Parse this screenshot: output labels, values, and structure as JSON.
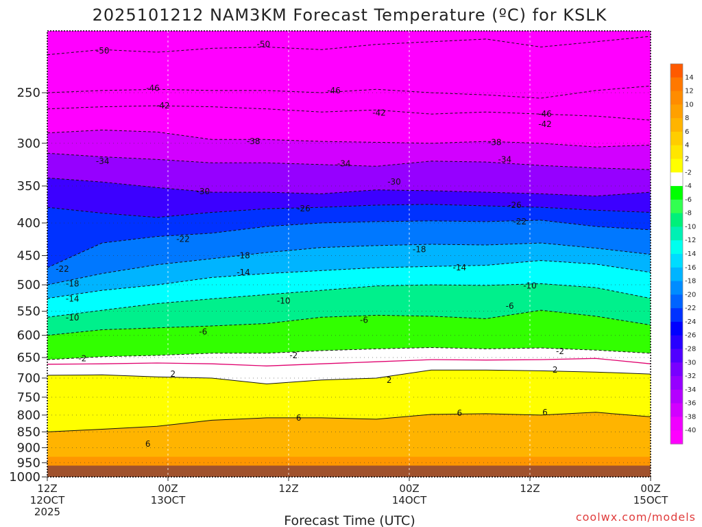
{
  "chart_data": {
    "type": "heatmap",
    "title": "2025101212 NAM3KM Forecast Temperature (ºC) for KSLK",
    "xlabel": "Forecast Time (UTC)",
    "credit": "coolwx.com/models",
    "y_axis": {
      "unit": "hPa",
      "ticks": [
        250,
        300,
        350,
        400,
        450,
        500,
        550,
        600,
        650,
        700,
        750,
        800,
        850,
        900,
        950,
        1000
      ],
      "top_pressure": 200,
      "bottom_pressure": 1000,
      "ground_level_hPa": 960
    },
    "x_axis": {
      "range_hours": [
        0,
        60
      ],
      "ticks": [
        {
          "hour": 0,
          "line1": "12Z",
          "line2": "12OCT",
          "line3": "2025"
        },
        {
          "hour": 12,
          "line1": "00Z",
          "line2": "13OCT",
          "line3": ""
        },
        {
          "hour": 24,
          "line1": "12Z",
          "line2": "",
          "line3": ""
        },
        {
          "hour": 36,
          "line1": "00Z",
          "line2": "14OCT",
          "line3": ""
        },
        {
          "hour": 48,
          "line1": "12Z",
          "line2": "",
          "line3": ""
        },
        {
          "hour": 60,
          "line1": "00Z",
          "line2": "15OCT",
          "line3": ""
        }
      ]
    },
    "colorbar": {
      "labels": [
        "14",
        "12",
        "10",
        "8",
        "6",
        "4",
        "2",
        "-2",
        "-4",
        "-6",
        "-8",
        "-10",
        "-12",
        "-14",
        "-16",
        "-18",
        "-20",
        "-22",
        "-24",
        "-26",
        "-28",
        "-30",
        "-32",
        "-34",
        "-36",
        "-38",
        "-40"
      ],
      "colors": [
        "#ff5a00",
        "#ff7800",
        "#ff8c00",
        "#ffa000",
        "#ffb400",
        "#ffcd00",
        "#ffe600",
        "#ffff00",
        "#ffffff",
        "#00ff00",
        "#32ff50",
        "#00f07a",
        "#00f0b4",
        "#00ffee",
        "#00dcff",
        "#00b4ff",
        "#008cff",
        "#0064ff",
        "#0032ff",
        "#0000ff",
        "#2800ff",
        "#5000ff",
        "#7800ff",
        "#9600ff",
        "#b400ff",
        "#d200ff",
        "#f000ff",
        "#ff00ff"
      ]
    },
    "contours": [
      {
        "value": -50,
        "pressure": [
          218,
          214,
          216,
          213,
          212,
          214,
          210,
          208,
          206,
          212,
          208,
          204
        ]
      },
      {
        "value": -46,
        "pressure": [
          250,
          248,
          247,
          248,
          248,
          250,
          247,
          250,
          252,
          255,
          248,
          244
        ]
      },
      {
        "value": -42,
        "pressure": [
          265,
          263,
          262,
          263,
          265,
          268,
          266,
          270,
          268,
          270,
          272,
          276
        ]
      },
      {
        "value": -38,
        "pressure": [
          289,
          286,
          288,
          296,
          296,
          298,
          299,
          300,
          298,
          300,
          304,
          302
        ]
      },
      {
        "value": -34,
        "pressure": [
          311,
          315,
          318,
          322,
          322,
          324,
          326,
          320,
          321,
          325,
          328,
          330
        ]
      },
      {
        "value": -30,
        "pressure": [
          340,
          345,
          352,
          358,
          358,
          360,
          355,
          356,
          358,
          360,
          363,
          358
        ]
      },
      {
        "value": -26,
        "pressure": [
          378,
          386,
          392,
          385,
          380,
          378,
          375,
          374,
          376,
          378,
          382,
          385
        ]
      },
      {
        "value": -22,
        "pressure": [
          470,
          430,
          420,
          415,
          405,
          400,
          398,
          397,
          398,
          396,
          405,
          410
        ]
      },
      {
        "value": -18,
        "pressure": [
          500,
          480,
          465,
          455,
          445,
          437,
          434,
          432,
          433,
          430,
          438,
          448
        ]
      },
      {
        "value": -14,
        "pressure": [
          525,
          510,
          500,
          487,
          480,
          475,
          470,
          468,
          466,
          458,
          464,
          478
        ]
      },
      {
        "value": -10,
        "pressure": [
          562,
          548,
          535,
          526,
          518,
          510,
          502,
          500,
          501,
          498,
          505,
          525
        ]
      },
      {
        "value": -6,
        "pressure": [
          600,
          588,
          584,
          580,
          575,
          562,
          558,
          560,
          565,
          548,
          560,
          578
        ]
      },
      {
        "value": -2,
        "pressure": [
          655,
          648,
          645,
          640,
          640,
          634,
          630,
          627,
          630,
          628,
          633,
          640
        ]
      },
      {
        "value": 0,
        "pressure": [
          666,
          665,
          663,
          665,
          670,
          665,
          660,
          655,
          656,
          655,
          652,
          665
        ]
      },
      {
        "value": 2,
        "pressure": [
          693,
          692,
          697,
          700,
          715,
          705,
          700,
          680,
          680,
          682,
          685,
          690
        ]
      },
      {
        "value": 6,
        "pressure": [
          850,
          842,
          833,
          815,
          808,
          808,
          812,
          798,
          796,
          800,
          792,
          805
        ]
      }
    ],
    "contour_labels": [
      {
        "text": "-50",
        "hour": 5.5,
        "pressure": 215
      },
      {
        "text": "-50",
        "hour": 21.5,
        "pressure": 210
      },
      {
        "text": "-46",
        "hour": 10.5,
        "pressure": 246
      },
      {
        "text": "-46",
        "hour": 28.5,
        "pressure": 248
      },
      {
        "text": "-46",
        "hour": 49.5,
        "pressure": 270
      },
      {
        "text": "-42",
        "hour": 11.5,
        "pressure": 262
      },
      {
        "text": "-42",
        "hour": 33,
        "pressure": 269
      },
      {
        "text": "-42",
        "hour": 49.5,
        "pressure": 280
      },
      {
        "text": "-38",
        "hour": 20.5,
        "pressure": 298
      },
      {
        "text": "-38",
        "hour": 44.5,
        "pressure": 299
      },
      {
        "text": "-34",
        "hour": 5.5,
        "pressure": 320
      },
      {
        "text": "-34",
        "hour": 29.5,
        "pressure": 323
      },
      {
        "text": "-34",
        "hour": 45.5,
        "pressure": 318
      },
      {
        "text": "-30",
        "hour": 15.5,
        "pressure": 357
      },
      {
        "text": "-30",
        "hour": 34.5,
        "pressure": 345
      },
      {
        "text": "-26",
        "hour": 25.5,
        "pressure": 380
      },
      {
        "text": "-26",
        "hour": 46.5,
        "pressure": 375
      },
      {
        "text": "-22",
        "hour": 13.5,
        "pressure": 424
      },
      {
        "text": "-22",
        "hour": 47,
        "pressure": 398
      },
      {
        "text": "-22",
        "hour": 1.5,
        "pressure": 472
      },
      {
        "text": "-18",
        "hour": 19.5,
        "pressure": 450
      },
      {
        "text": "-18",
        "hour": 37,
        "pressure": 440
      },
      {
        "text": "-18",
        "hour": 2.5,
        "pressure": 498
      },
      {
        "text": "-14",
        "hour": 19.5,
        "pressure": 478
      },
      {
        "text": "-14",
        "hour": 41,
        "pressure": 470
      },
      {
        "text": "-14",
        "hour": 2.5,
        "pressure": 526
      },
      {
        "text": "-10",
        "hour": 23.5,
        "pressure": 530
      },
      {
        "text": "-10",
        "hour": 48,
        "pressure": 502
      },
      {
        "text": "-10",
        "hour": 2.5,
        "pressure": 563
      },
      {
        "text": "-6",
        "hour": 15.5,
        "pressure": 592
      },
      {
        "text": "-6",
        "hour": 31.5,
        "pressure": 568
      },
      {
        "text": "-6",
        "hour": 46,
        "pressure": 540
      },
      {
        "text": "-2",
        "hour": 3.5,
        "pressure": 652
      },
      {
        "text": "-2",
        "hour": 24.5,
        "pressure": 645
      },
      {
        "text": "-2",
        "hour": 51,
        "pressure": 636
      },
      {
        "text": "2",
        "hour": 12.5,
        "pressure": 690
      },
      {
        "text": "2",
        "hour": 34,
        "pressure": 705
      },
      {
        "text": "2",
        "hour": 50.5,
        "pressure": 680
      },
      {
        "text": "6",
        "hour": 25,
        "pressure": 808
      },
      {
        "text": "6",
        "hour": 41,
        "pressure": 794
      },
      {
        "text": "6",
        "hour": 49.5,
        "pressure": 792
      },
      {
        "text": "6",
        "hour": 10,
        "pressure": 888
      }
    ]
  },
  "icons": {
    "ground": "brown-surface"
  }
}
